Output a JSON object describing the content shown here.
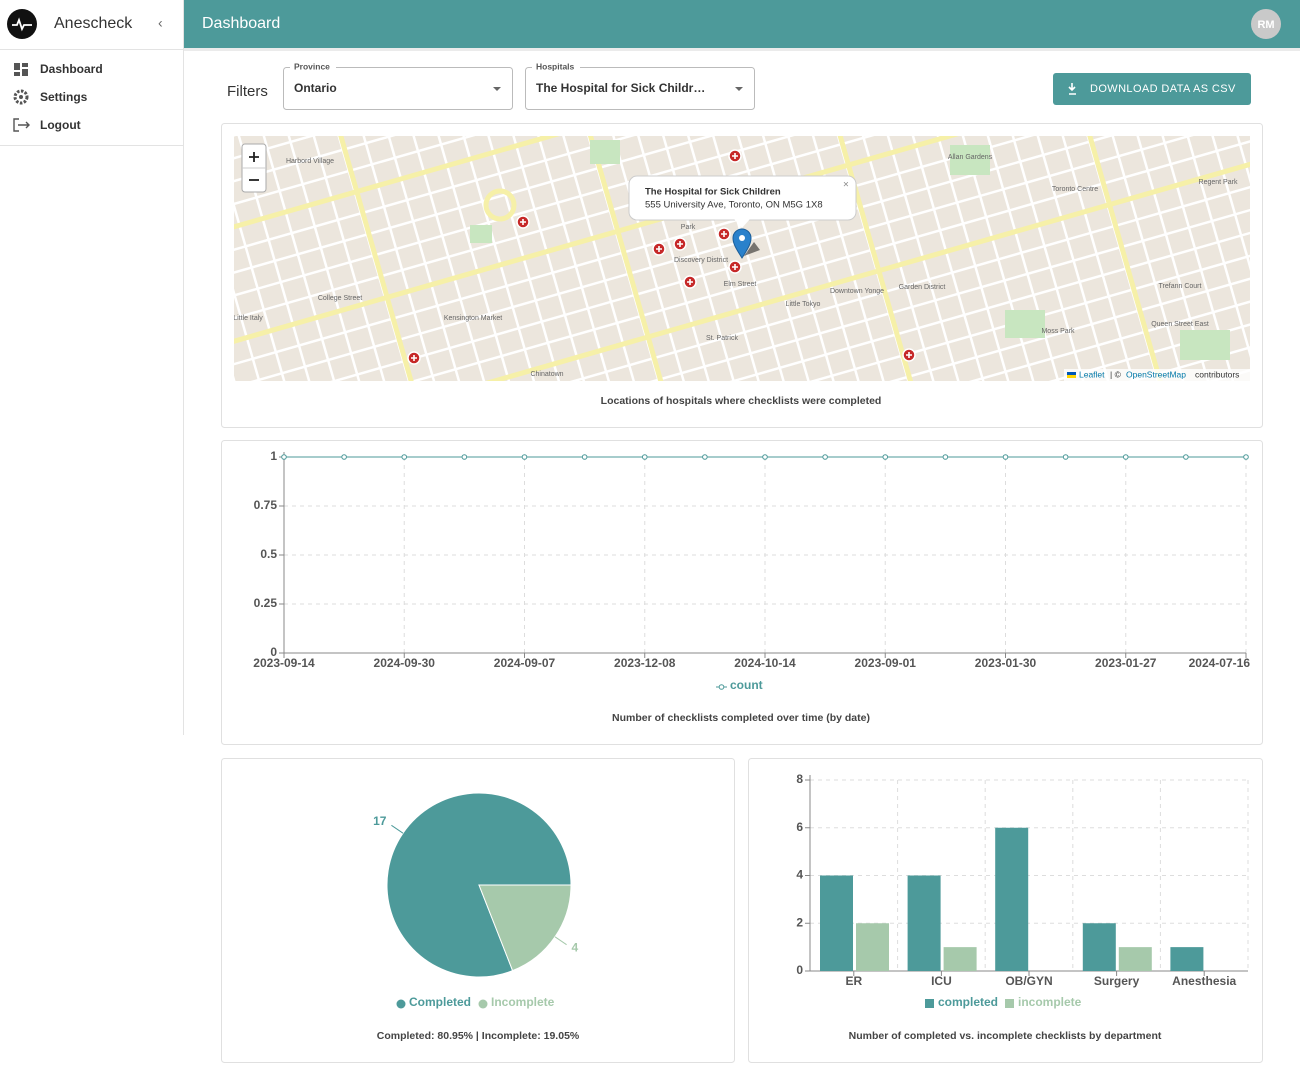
{
  "sidebar": {
    "brand": "Anescheck",
    "menu": [
      "Dashboard",
      "Settings",
      "Logout"
    ]
  },
  "header": {
    "title": "Dashboard",
    "avatar": "RM"
  },
  "filters": {
    "label": "Filters",
    "province": {
      "label": "Province",
      "value": "Ontario"
    },
    "hospital": {
      "label": "Hospitals",
      "value": "The Hospital for Sick Childr…"
    },
    "download": "DOWNLOAD DATA AS CSV"
  },
  "map": {
    "caption": "Locations of hospitals where checklists were completed",
    "popup": {
      "name": "The Hospital for Sick Children",
      "address": "555 University Ave, Toronto, ON M5G 1X8"
    },
    "attribution": [
      "Leaflet",
      "| ©",
      "OpenStreetMap",
      "contributors"
    ],
    "places": [
      "Harbord Village",
      "Kensington Market",
      "Discovery District",
      "Downtown Yonge",
      "Garden District",
      "Little Tokyo",
      "Chinatown",
      "Toronto Centre",
      "Little Italy",
      "Regent Park",
      "Trefann Court",
      "Moss Park",
      "St. Patrick",
      "Allan Gardens",
      "College Street",
      "Queen Street East",
      "Elm Street",
      "Park"
    ]
  },
  "chart_data": [
    {
      "type": "line",
      "title": "Number of checklists completed over time (by date)",
      "categories": [
        "2023-09-14",
        null,
        "2024-09-30",
        null,
        "2024-09-07",
        null,
        "2023-12-08",
        null,
        "2024-10-14",
        null,
        "2023-09-01",
        null,
        "2023-01-30",
        null,
        "2023-01-27",
        null,
        "2024-07-16"
      ],
      "series": [
        {
          "name": "count",
          "color": "#4d9a9a",
          "values": [
            1,
            1,
            1,
            1,
            1,
            1,
            1,
            1,
            1,
            1,
            1,
            1,
            1,
            1,
            1,
            1,
            1
          ]
        }
      ],
      "ylim": [
        0,
        1
      ],
      "yticks": [
        0,
        0.25,
        0.5,
        0.75,
        1
      ],
      "grid": true
    },
    {
      "type": "pie",
      "title": "Completed: 80.95% | Incomplete: 19.05%",
      "categories": [
        "Completed",
        "Incomplete"
      ],
      "values": [
        17,
        4
      ],
      "colors": [
        "#4d9a9a",
        "#a6c9ab"
      ]
    },
    {
      "type": "bar",
      "title": "Number of completed vs. incomplete checklists by department",
      "categories": [
        "ER",
        "ICU",
        "OB/GYN",
        "Surgery",
        "Anesthesia"
      ],
      "series": [
        {
          "name": "completed",
          "color": "#4d9a9a",
          "values": [
            4,
            4,
            6,
            2,
            1
          ]
        },
        {
          "name": "incomplete",
          "color": "#a6c9ab",
          "values": [
            2,
            1,
            0,
            1,
            0
          ]
        }
      ],
      "ylim": [
        0,
        8
      ],
      "yticks": [
        0,
        2,
        4,
        6,
        8
      ],
      "grid": true
    }
  ]
}
